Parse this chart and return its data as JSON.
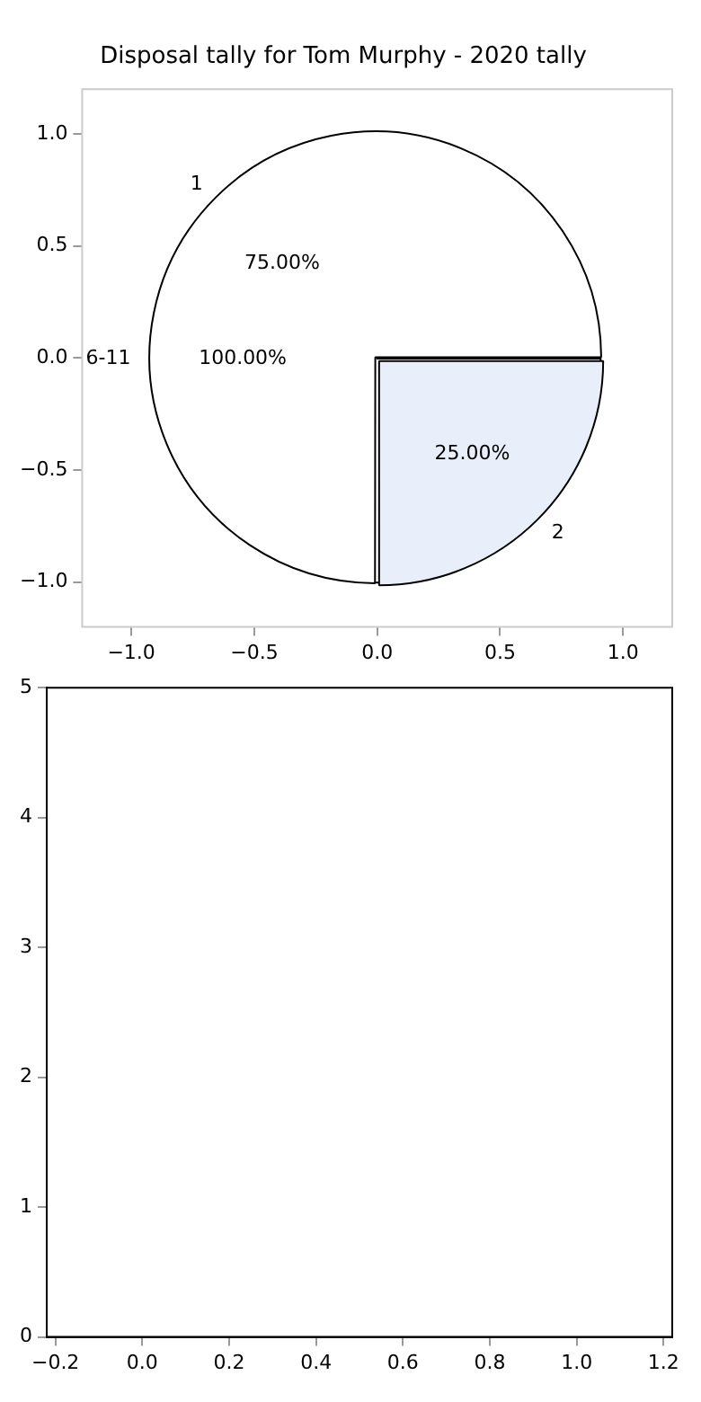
{
  "chart_data": [
    {
      "type": "scatter",
      "title": "Disposal tally for Tom Murphy - 2020 tally",
      "xlim": [
        -1.2,
        1.2
      ],
      "ylim": [
        -1.2,
        1.2
      ],
      "xticks": [
        {
          "value": -1,
          "label": "−1.0"
        },
        {
          "value": -0.5,
          "label": "−0.5"
        },
        {
          "value": 0,
          "label": "0.0"
        },
        {
          "value": 0.5,
          "label": "0.5"
        },
        {
          "value": 1,
          "label": "1.0"
        }
      ],
      "yticks": [
        {
          "value": -1,
          "label": "−1.0"
        },
        {
          "value": -0.5,
          "label": "−0.5"
        },
        {
          "value": 0,
          "label": "0.0"
        },
        {
          "value": 0.5,
          "label": "0.5"
        },
        {
          "value": 1,
          "label": "1.0"
        }
      ]
    },
    {
      "type": "pie",
      "categories": [
        "6-11"
      ],
      "values": [
        100
      ],
      "colors": [
        "#ffffff"
      ],
      "value_labels": [
        "100.00%"
      ]
    },
    {
      "type": "pie",
      "categories": [
        "1",
        "2"
      ],
      "values": [
        75,
        25
      ],
      "colors": [
        "#ffffff",
        "#e8eefa"
      ],
      "value_labels": [
        "75.00%",
        "25.00%"
      ]
    },
    {
      "type": "scatter",
      "xlim": [
        -0.22,
        1.22
      ],
      "ylim": [
        0,
        5
      ],
      "xticks": [
        {
          "value": -0.2,
          "label": "−0.2"
        },
        {
          "value": 0,
          "label": "0.0"
        },
        {
          "value": 0.2,
          "label": "0.2"
        },
        {
          "value": 0.4,
          "label": "0.4"
        },
        {
          "value": 0.6,
          "label": "0.6"
        },
        {
          "value": 0.8,
          "label": "0.8"
        },
        {
          "value": 1,
          "label": "1.0"
        },
        {
          "value": 1.2,
          "label": "1.2"
        }
      ],
      "yticks": [
        0,
        1,
        2,
        3,
        4,
        5
      ]
    }
  ]
}
